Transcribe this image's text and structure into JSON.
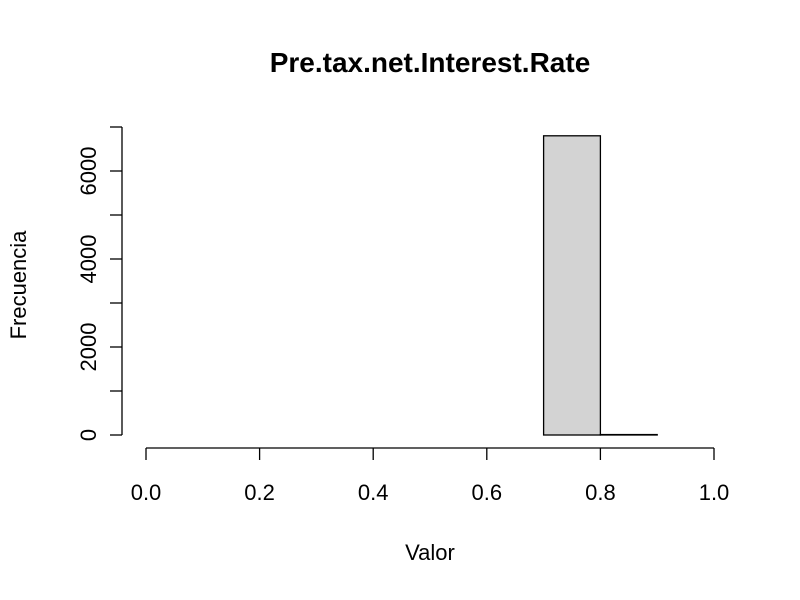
{
  "chart_data": {
    "type": "bar",
    "title": "Pre.tax.net.Interest.Rate",
    "xlabel": "Valor",
    "ylabel": "Frecuencia",
    "bins": [
      {
        "from": 0.0,
        "to": 0.1,
        "count": 0
      },
      {
        "from": 0.1,
        "to": 0.2,
        "count": 0
      },
      {
        "from": 0.2,
        "to": 0.3,
        "count": 0
      },
      {
        "from": 0.3,
        "to": 0.4,
        "count": 0
      },
      {
        "from": 0.4,
        "to": 0.5,
        "count": 0
      },
      {
        "from": 0.5,
        "to": 0.6,
        "count": 0
      },
      {
        "from": 0.6,
        "to": 0.7,
        "count": 0
      },
      {
        "from": 0.7,
        "to": 0.8,
        "count": 6800
      },
      {
        "from": 0.8,
        "to": 0.9,
        "count": 10
      },
      {
        "from": 0.9,
        "to": 1.0,
        "count": 0
      }
    ],
    "xlim": [
      0.0,
      1.0
    ],
    "ylim": [
      0,
      7000
    ],
    "xticks": [
      0.0,
      0.2,
      0.4,
      0.6,
      0.8,
      1.0
    ],
    "xtick_labels": [
      "0.0",
      "0.2",
      "0.4",
      "0.6",
      "0.8",
      "1.0"
    ],
    "yticks": [
      0,
      1000,
      2000,
      3000,
      4000,
      5000,
      6000,
      7000
    ],
    "yticks_labeled": [
      0,
      2000,
      4000,
      6000
    ],
    "ytick_labels": [
      "0",
      "2000",
      "4000",
      "6000"
    ],
    "bar_color": "#d3d3d3",
    "grid": false,
    "legend": "none"
  }
}
